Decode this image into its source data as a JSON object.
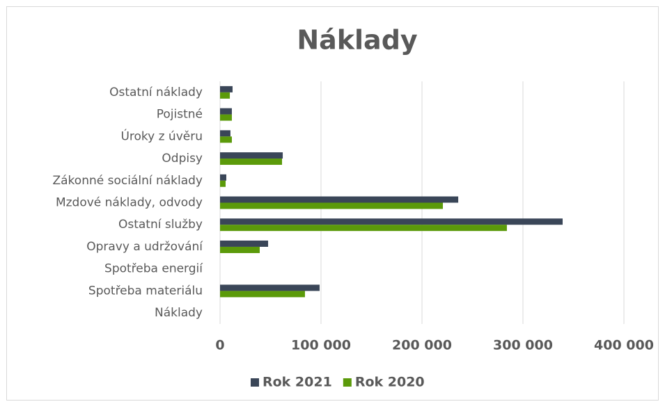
{
  "chart_data": {
    "type": "bar",
    "orientation": "horizontal",
    "title": "Náklady",
    "categories": [
      "Náklady",
      "Spotřeba materiálu",
      "Spotřeba energií",
      "Opravy a udržování",
      "Ostatní služby",
      "Mzdové náklady, odvody",
      "Zákonné sociální náklady",
      "Odpisy",
      "Úroky z úvěru",
      "Pojistné",
      "Ostatní náklady"
    ],
    "series": [
      {
        "name": "Rok 2021",
        "color": "#3a4658",
        "values": [
          null,
          98600,
          null,
          47600,
          339300,
          235900,
          6200,
          62100,
          10300,
          11700,
          12400
        ]
      },
      {
        "name": "Rok 2020",
        "color": "#5b9a0a",
        "values": [
          null,
          84100,
          null,
          39300,
          284100,
          220700,
          5500,
          61400,
          11700,
          11700,
          9700
        ]
      }
    ],
    "xlim": [
      0,
      400000
    ],
    "xticks": [
      0,
      {
        "value": 100000,
        "label": "100 000"
      },
      {
        "value": 200000,
        "label": "200 000"
      },
      {
        "value": 300000,
        "label": "300 000"
      },
      {
        "value": 400000,
        "label": "400 000"
      }
    ],
    "grid": true,
    "legend": "bottom"
  }
}
